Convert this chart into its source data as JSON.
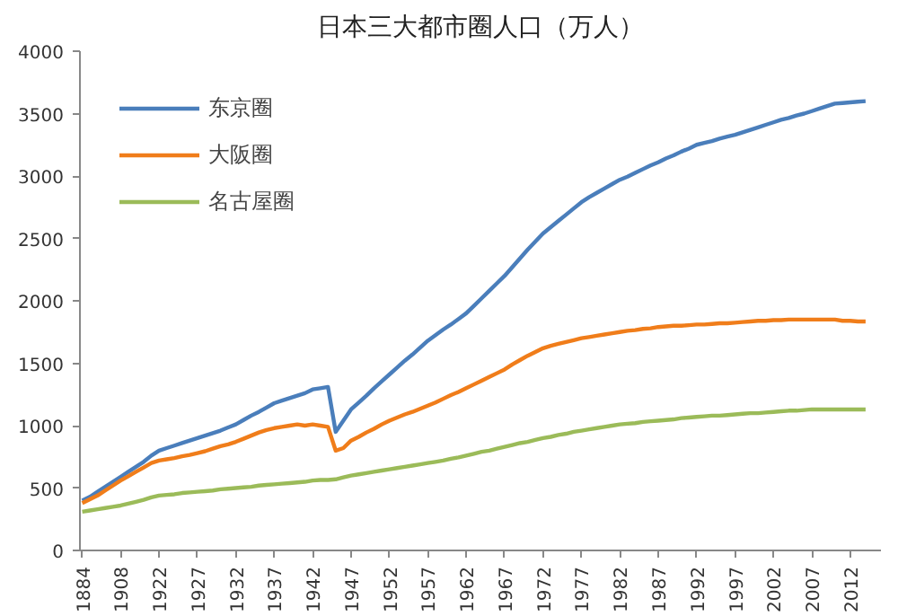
{
  "chart_data": {
    "type": "line",
    "title": "日本三大都市圈人口（万人）",
    "categories": [
      "1884",
      null,
      null,
      null,
      null,
      "1908",
      null,
      null,
      null,
      null,
      "1922",
      null,
      null,
      null,
      null,
      "1927",
      null,
      null,
      null,
      null,
      "1932",
      null,
      null,
      null,
      null,
      "1937",
      null,
      null,
      null,
      null,
      "1942",
      null,
      null,
      null,
      null,
      "1947",
      null,
      null,
      null,
      null,
      "1952",
      null,
      null,
      null,
      null,
      "1957",
      null,
      null,
      null,
      null,
      "1962",
      null,
      null,
      null,
      null,
      "1967",
      null,
      null,
      null,
      null,
      "1972",
      null,
      null,
      null,
      null,
      "1977",
      null,
      null,
      null,
      null,
      "1982",
      null,
      null,
      null,
      null,
      "1987",
      null,
      null,
      null,
      null,
      "1992",
      null,
      null,
      null,
      null,
      "1997",
      null,
      null,
      null,
      null,
      "2002",
      null,
      null,
      null,
      null,
      "2007",
      null,
      null,
      null,
      null,
      "2012",
      null,
      null
    ],
    "series": [
      {
        "name": "东京圈",
        "color": "#4a7ebb",
        "values": [
          400,
          430,
          470,
          510,
          550,
          590,
          630,
          670,
          710,
          760,
          800,
          820,
          840,
          860,
          880,
          900,
          920,
          940,
          960,
          985,
          1010,
          1045,
          1080,
          1110,
          1145,
          1180,
          1200,
          1220,
          1240,
          1260,
          1290,
          1300,
          1310,
          950,
          1040,
          1130,
          1185,
          1240,
          1300,
          1355,
          1410,
          1465,
          1520,
          1570,
          1625,
          1680,
          1725,
          1770,
          1810,
          1855,
          1900,
          1960,
          2020,
          2080,
          2140,
          2200,
          2270,
          2340,
          2410,
          2475,
          2540,
          2590,
          2640,
          2690,
          2740,
          2790,
          2830,
          2865,
          2900,
          2935,
          2970,
          2995,
          3025,
          3055,
          3085,
          3110,
          3140,
          3165,
          3195,
          3220,
          3250,
          3265,
          3280,
          3300,
          3315,
          3330,
          3350,
          3370,
          3390,
          3410,
          3430,
          3450,
          3465,
          3485,
          3500,
          3520,
          3540,
          3560,
          3580,
          3585,
          3590,
          3595,
          3600
        ]
      },
      {
        "name": "大阪圈",
        "color": "#f07d1a",
        "values": [
          380,
          410,
          440,
          480,
          520,
          560,
          595,
          630,
          665,
          700,
          720,
          730,
          740,
          755,
          765,
          780,
          795,
          815,
          835,
          850,
          870,
          895,
          920,
          945,
          965,
          980,
          990,
          1000,
          1010,
          1000,
          1010,
          1000,
          990,
          800,
          820,
          880,
          910,
          945,
          975,
          1010,
          1040,
          1065,
          1090,
          1110,
          1135,
          1160,
          1185,
          1215,
          1245,
          1270,
          1300,
          1330,
          1360,
          1390,
          1420,
          1450,
          1490,
          1525,
          1560,
          1590,
          1620,
          1640,
          1655,
          1670,
          1685,
          1700,
          1710,
          1720,
          1730,
          1740,
          1750,
          1760,
          1765,
          1775,
          1780,
          1790,
          1795,
          1800,
          1800,
          1805,
          1810,
          1810,
          1815,
          1820,
          1820,
          1825,
          1830,
          1835,
          1840,
          1840,
          1845,
          1845,
          1850,
          1850,
          1850,
          1850,
          1850,
          1850,
          1850,
          1840,
          1840,
          1835,
          1835
        ]
      },
      {
        "name": "名古屋圈",
        "color": "#9bbb59",
        "values": [
          310,
          320,
          330,
          340,
          350,
          360,
          375,
          390,
          405,
          425,
          440,
          445,
          450,
          460,
          465,
          470,
          475,
          480,
          490,
          495,
          500,
          505,
          510,
          520,
          525,
          530,
          535,
          540,
          545,
          550,
          560,
          565,
          565,
          570,
          585,
          600,
          610,
          620,
          630,
          640,
          650,
          660,
          670,
          680,
          690,
          700,
          710,
          720,
          735,
          745,
          760,
          775,
          790,
          800,
          815,
          830,
          845,
          860,
          870,
          885,
          900,
          910,
          925,
          935,
          950,
          960,
          970,
          980,
          990,
          1000,
          1010,
          1015,
          1020,
          1030,
          1035,
          1040,
          1045,
          1050,
          1060,
          1065,
          1070,
          1075,
          1080,
          1080,
          1085,
          1090,
          1095,
          1100,
          1100,
          1105,
          1110,
          1115,
          1120,
          1120,
          1125,
          1130,
          1130,
          1130,
          1130,
          1130,
          1130,
          1130,
          1130
        ]
      }
    ],
    "ylim": [
      0,
      4000
    ],
    "yticks": [
      0,
      500,
      1000,
      1500,
      2000,
      2500,
      3000,
      3500,
      4000
    ],
    "grid": false,
    "legend": "top left"
  }
}
